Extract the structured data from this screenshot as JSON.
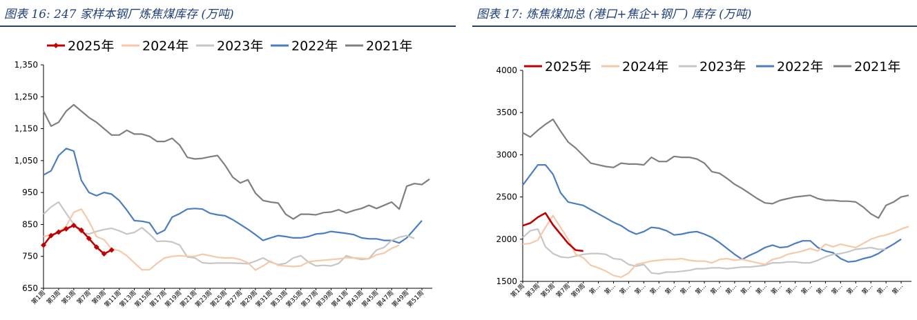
{
  "chart_data": [
    {
      "type": "line",
      "title": "图表 16: 247 家样本钢厂炼焦煤库存 (万吨)",
      "xlabel": "",
      "ylabel": "",
      "ylim": [
        650,
        1350
      ],
      "yticks": [
        "1,350",
        "1,250",
        "1,150",
        "1,050",
        "950",
        "850",
        "750",
        "650"
      ],
      "x_labels": [
        "第1周",
        "第3周",
        "第5周",
        "第7周",
        "第9周",
        "第11周",
        "第13周",
        "第15周",
        "第17周",
        "第19周",
        "第21周",
        "第23周",
        "第25周",
        "第27周",
        "第29周",
        "第31周",
        "第33周",
        "第35周",
        "第37周",
        "第39周",
        "第41周",
        "第43周",
        "第45周",
        "第47周",
        "第49周",
        "第51周"
      ],
      "legend": [
        "2025年",
        "2024年",
        "2023年",
        "2022年",
        "2021年"
      ],
      "series": [
        {
          "name": "2025年",
          "color": "#c00000",
          "marker": "diamond",
          "values": [
            785,
            815,
            826,
            836,
            847,
            832,
            806,
            779,
            758,
            770
          ]
        },
        {
          "name": "2024年",
          "color": "#f7c8a8",
          "values": [
            812,
            818,
            825,
            845,
            888,
            898,
            860,
            812,
            802,
            773,
            768,
            752,
            730,
            708,
            708,
            728,
            745,
            750,
            752,
            750,
            750,
            757,
            752,
            747,
            745,
            745,
            740,
            730,
            707,
            720,
            735,
            722,
            720,
            718,
            720,
            733,
            736,
            738,
            740,
            742,
            746,
            745,
            744,
            742,
            755,
            760,
            775,
            785
          ]
        },
        {
          "name": "2023年",
          "color": "#c6c6c6",
          "values": [
            882,
            905,
            920,
            885,
            850,
            824,
            820,
            828,
            834,
            838,
            830,
            820,
            825,
            840,
            820,
            797,
            798,
            795,
            785,
            748,
            745,
            730,
            728,
            729,
            729,
            729,
            728,
            727,
            735,
            745,
            732,
            724,
            728,
            745,
            752,
            732,
            720,
            722,
            720,
            728,
            752,
            745,
            740,
            743,
            770,
            778,
            800,
            810,
            815,
            806
          ]
        },
        {
          "name": "2022年",
          "color": "#4a7cc0",
          "values": [
            1005,
            1018,
            1066,
            1088,
            1080,
            988,
            950,
            940,
            950,
            945,
            925,
            895,
            862,
            860,
            855,
            820,
            832,
            873,
            884,
            898,
            900,
            898,
            885,
            880,
            877,
            865,
            850,
            835,
            818,
            800,
            808,
            815,
            812,
            808,
            808,
            812,
            820,
            822,
            828,
            825,
            822,
            818,
            808,
            805,
            805,
            800,
            800,
            792,
            808,
            835,
            862
          ]
        },
        {
          "name": "2021年",
          "color": "#7f7f7f",
          "values": [
            1205,
            1158,
            1170,
            1205,
            1225,
            1205,
            1185,
            1170,
            1150,
            1130,
            1130,
            1145,
            1133,
            1133,
            1126,
            1110,
            1110,
            1120,
            1098,
            1060,
            1055,
            1057,
            1062,
            1066,
            1035,
            998,
            980,
            990,
            948,
            925,
            920,
            917,
            882,
            867,
            882,
            882,
            880,
            887,
            889,
            896,
            886,
            894,
            900,
            910,
            900,
            910,
            920,
            898,
            970,
            978,
            975,
            992
          ]
        }
      ]
    },
    {
      "type": "line",
      "title": "图表 17: 炼焦煤加总 (港口+焦企+钢厂) 库存 (万吨)",
      "xlabel": "",
      "ylabel": "",
      "ylim": [
        1500,
        4000
      ],
      "yticks": [
        "4000",
        "3500",
        "3000",
        "2500",
        "2000",
        "1500"
      ],
      "x_labels": [
        "第1周",
        "第3周",
        "第5周",
        "第7周",
        "第9周",
        "第...",
        "第...",
        "第...",
        "第...",
        "第...",
        "第...",
        "第...",
        "第...",
        "第...",
        "第...",
        "第...",
        "第...",
        "第...",
        "第...",
        "第...",
        "第...",
        "第...",
        "第...",
        "第...",
        "第...",
        "第..."
      ],
      "legend": [
        "2025年",
        "2024年",
        "2023年",
        "2022年",
        "2021年"
      ],
      "series": [
        {
          "name": "2025年",
          "color": "#c00000",
          "values": [
            2160,
            2190,
            2260,
            2310,
            2170,
            2060,
            1950,
            1870,
            1860
          ]
        },
        {
          "name": "2024年",
          "color": "#f7c8a8",
          "values": [
            1940,
            1950,
            1990,
            2140,
            2280,
            2140,
            2000,
            1820,
            1780,
            1690,
            1660,
            1620,
            1570,
            1550,
            1600,
            1700,
            1720,
            1740,
            1750,
            1760,
            1760,
            1770,
            1750,
            1740,
            1740,
            1720,
            1760,
            1770,
            1750,
            1760,
            1740,
            1720,
            1700,
            1760,
            1780,
            1820,
            1840,
            1860,
            1890,
            1860,
            1940,
            1910,
            1940,
            1920,
            1900,
            1950,
            2000,
            2030,
            2050,
            2080,
            2120,
            2150
          ]
        },
        {
          "name": "2023年",
          "color": "#c6c6c6",
          "values": [
            2020,
            2100,
            2120,
            1910,
            1830,
            1790,
            1780,
            1800,
            1820,
            1830,
            1830,
            1820,
            1770,
            1760,
            1700,
            1680,
            1700,
            1600,
            1590,
            1610,
            1610,
            1620,
            1630,
            1650,
            1650,
            1660,
            1660,
            1650,
            1660,
            1670,
            1670,
            1680,
            1690,
            1720,
            1720,
            1730,
            1730,
            1720,
            1720,
            1750,
            1790,
            1820,
            1830,
            1850,
            1880,
            1890,
            1900,
            1880,
            1880
          ]
        },
        {
          "name": "2022年",
          "color": "#4a7cc0",
          "values": [
            2640,
            2760,
            2880,
            2880,
            2770,
            2550,
            2440,
            2420,
            2400,
            2350,
            2300,
            2250,
            2200,
            2160,
            2100,
            2060,
            2090,
            2140,
            2130,
            2100,
            2050,
            2060,
            2080,
            2090,
            2060,
            2020,
            1960,
            1890,
            1820,
            1760,
            1810,
            1850,
            1900,
            1930,
            1900,
            1910,
            1950,
            1980,
            1980,
            1900,
            1860,
            1840,
            1770,
            1730,
            1740,
            1770,
            1790,
            1830,
            1890,
            1940,
            2000
          ]
        },
        {
          "name": "2021年",
          "color": "#7f7f7f",
          "values": [
            3260,
            3210,
            3290,
            3360,
            3420,
            3280,
            3150,
            3080,
            2990,
            2900,
            2880,
            2860,
            2850,
            2900,
            2890,
            2890,
            2880,
            2970,
            2920,
            2920,
            2980,
            2970,
            2970,
            2950,
            2900,
            2800,
            2780,
            2720,
            2650,
            2600,
            2540,
            2480,
            2430,
            2420,
            2460,
            2480,
            2500,
            2510,
            2520,
            2480,
            2460,
            2460,
            2450,
            2450,
            2440,
            2380,
            2300,
            2250,
            2400,
            2440,
            2500,
            2520
          ]
        }
      ]
    }
  ]
}
